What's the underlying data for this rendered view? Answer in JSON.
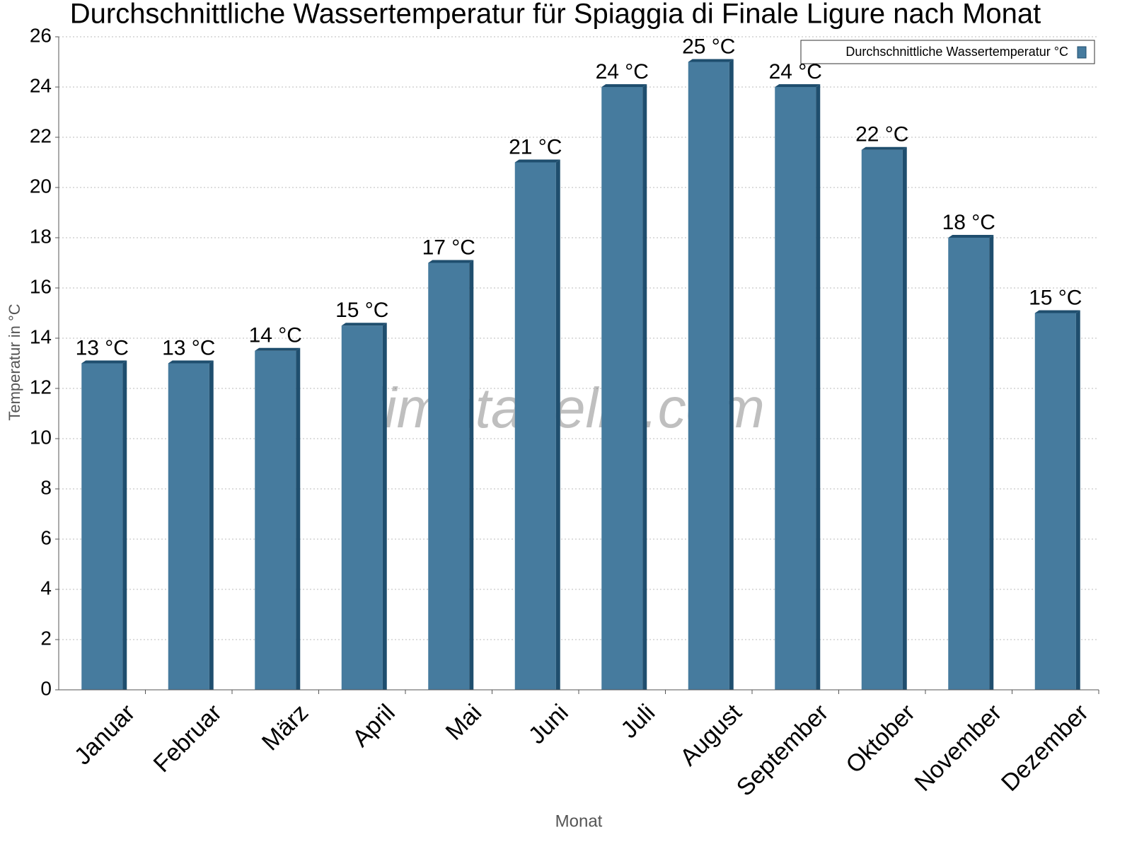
{
  "chart_data": {
    "type": "bar",
    "title": "Durchschnittliche Wassertemperatur für Spiaggia di Finale Ligure nach Monat",
    "x_label": "Monat",
    "y_label": "Temperatur in °C",
    "watermark": "klimatabelle.com",
    "categories": [
      "Januar",
      "Februar",
      "März",
      "April",
      "Mai",
      "Juni",
      "Juli",
      "August",
      "September",
      "Oktober",
      "November",
      "Dezember"
    ],
    "series": [
      {
        "name": "Durchschnittliche Wassertemperatur °C",
        "color": "#467b9e",
        "values": [
          13,
          13,
          13.5,
          14.5,
          17,
          21,
          24,
          25,
          24,
          21.5,
          18,
          15
        ],
        "value_labels": [
          "13 °C",
          "13 °C",
          "14 °C",
          "15 °C",
          "17 °C",
          "21 °C",
          "24 °C",
          "25 °C",
          "24 °C",
          "22 °C",
          "18 °C",
          "15 °C"
        ]
      }
    ],
    "ylim": [
      0,
      26
    ],
    "yticks": [
      0,
      2,
      4,
      6,
      8,
      10,
      12,
      14,
      16,
      18,
      20,
      22,
      24,
      26
    ],
    "grid": true,
    "legend": "top-right"
  }
}
